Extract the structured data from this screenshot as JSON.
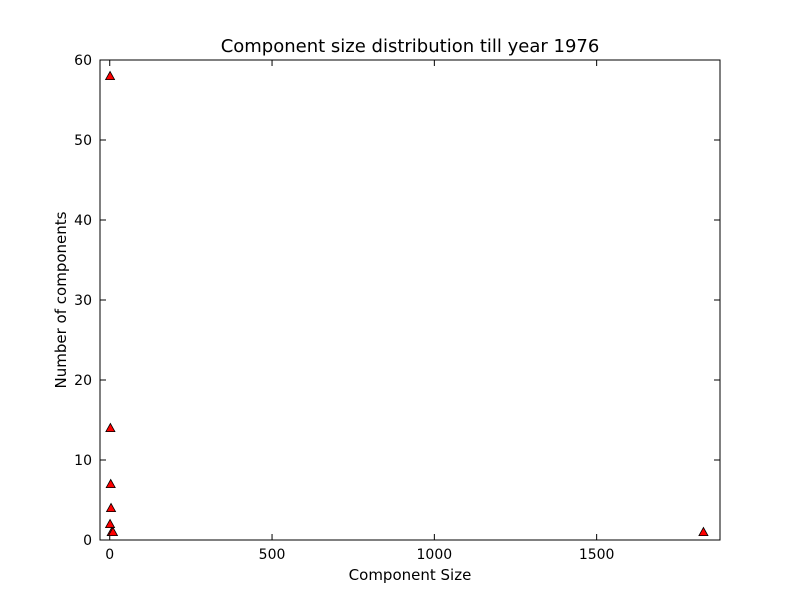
{
  "chart_data": {
    "type": "scatter",
    "title": "Component size distribution till year 1976",
    "xlabel": "Component Size",
    "ylabel": "Number of components",
    "xlim": [
      -30,
      1880
    ],
    "ylim": [
      0,
      60
    ],
    "x_ticks": [
      0,
      500,
      1000,
      1500
    ],
    "y_ticks": [
      0,
      10,
      20,
      30,
      40,
      50,
      60
    ],
    "grid": false,
    "marker": "triangle-up",
    "marker_color": "#ff0000",
    "marker_edge_color": "#000000",
    "points": [
      {
        "x": 1,
        "y": 58
      },
      {
        "x": 2,
        "y": 14
      },
      {
        "x": 3,
        "y": 7
      },
      {
        "x": 4,
        "y": 4
      },
      {
        "x": 1,
        "y": 2
      },
      {
        "x": 6,
        "y": 1
      },
      {
        "x": 10,
        "y": 1
      },
      {
        "x": 1829,
        "y": 1
      }
    ]
  }
}
